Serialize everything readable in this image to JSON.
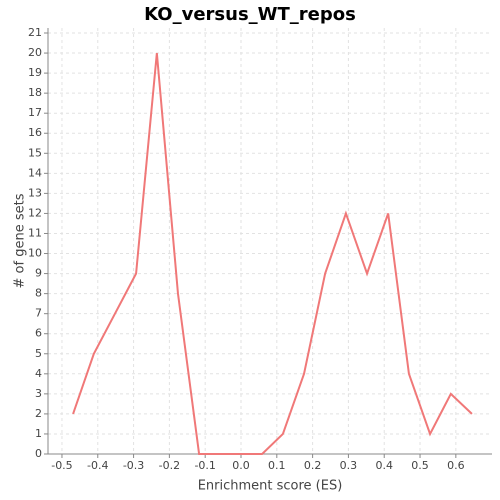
{
  "chart_data": {
    "type": "line",
    "title": "KO_versus_WT_repos",
    "xlabel": "Enrichment score (ES)",
    "ylabel": "# of gene sets",
    "x": [
      -0.469,
      -0.411,
      -0.352,
      -0.293,
      -0.235,
      -0.176,
      -0.117,
      -0.059,
      0.0,
      0.059,
      0.117,
      0.176,
      0.235,
      0.293,
      0.352,
      0.411,
      0.469,
      0.528,
      0.586,
      0.645
    ],
    "values": [
      2,
      5,
      7,
      9,
      20,
      8,
      0,
      0,
      0,
      0,
      1,
      4,
      9,
      12,
      9,
      12,
      4,
      1,
      3,
      2
    ],
    "color": "#f07878",
    "xlim": [
      -0.539,
      0.701
    ],
    "xticks": [
      -0.5,
      -0.4,
      -0.3,
      -0.2,
      -0.1,
      {
        "value": 0,
        "label": "0.0"
      },
      0.1,
      0.2,
      0.3,
      0.4,
      0.5,
      0.6
    ],
    "ylim": [
      0,
      21.25
    ],
    "yticks": [
      0,
      1,
      2,
      3,
      4,
      5,
      6,
      7,
      8,
      9,
      10,
      11,
      12,
      13,
      14,
      15,
      16,
      17,
      18,
      19,
      20,
      21
    ],
    "grid": true
  }
}
